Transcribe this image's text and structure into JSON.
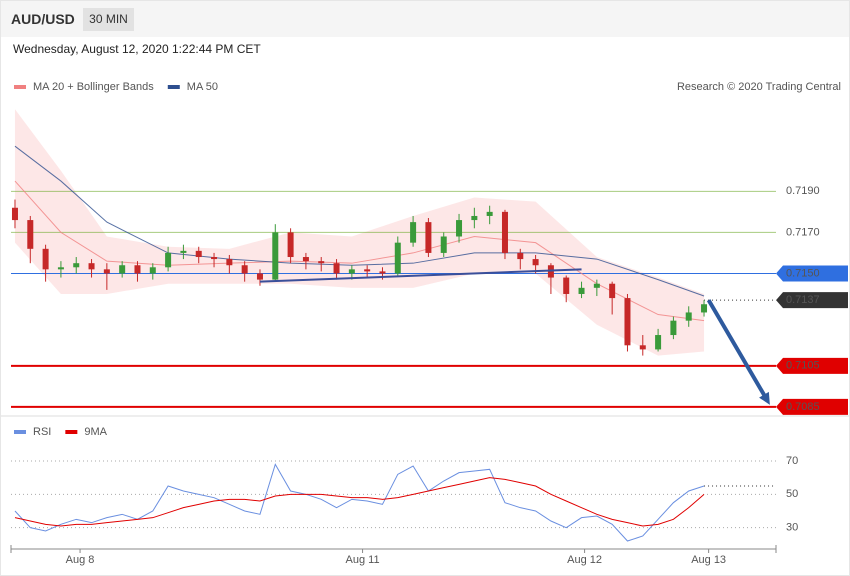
{
  "header": {
    "symbol": "AUD/USD",
    "timeframe": "30 MIN",
    "date": "Wednesday, August 12, 2020 1:22:44 PM CET"
  },
  "chart_data": [
    {
      "type": "candlestick",
      "annotation": "Research © 2020 Trading Central",
      "xlim": [
        -0.26,
        49.7
      ],
      "ylim": [
        0.7083,
        0.7234
      ],
      "up_color": "#3a9a3a",
      "down_color": "#c62828",
      "x": [
        0,
        1,
        2,
        3,
        4,
        5,
        6,
        7,
        8,
        9,
        10,
        11,
        12,
        13,
        14,
        15,
        16,
        17,
        18,
        19,
        20,
        21,
        22,
        23,
        24,
        25,
        26,
        27,
        28,
        29,
        30,
        31,
        32,
        33,
        34,
        35,
        36,
        37,
        38,
        39,
        40,
        41,
        42,
        43,
        44,
        45
      ],
      "open": [
        0.7182,
        0.7176,
        0.7162,
        0.7152,
        0.7153,
        0.7155,
        0.7152,
        0.715,
        0.7154,
        0.715,
        0.7153,
        0.716,
        0.7161,
        0.7158,
        0.7157,
        0.7154,
        0.715,
        0.7147,
        0.717,
        0.7158,
        0.7156,
        0.7155,
        0.715,
        0.7152,
        0.7151,
        0.715,
        0.7165,
        0.7175,
        0.716,
        0.7168,
        0.7176,
        0.7178,
        0.718,
        0.716,
        0.7157,
        0.7154,
        0.7148,
        0.714,
        0.7143,
        0.7145,
        0.7138,
        0.7115,
        0.7113,
        0.712,
        0.7127,
        0.7131
      ],
      "high": [
        0.7186,
        0.7178,
        0.7164,
        0.7156,
        0.7158,
        0.7157,
        0.7155,
        0.7156,
        0.7156,
        0.7155,
        0.7163,
        0.7164,
        0.7163,
        0.716,
        0.7159,
        0.7156,
        0.7152,
        0.7174,
        0.7172,
        0.716,
        0.7158,
        0.7157,
        0.7154,
        0.7154,
        0.7153,
        0.7168,
        0.7178,
        0.7177,
        0.717,
        0.7179,
        0.7182,
        0.7183,
        0.7181,
        0.7162,
        0.7159,
        0.7155,
        0.7149,
        0.7146,
        0.7147,
        0.7146,
        0.714,
        0.712,
        0.7123,
        0.7129,
        0.7134,
        0.7137
      ],
      "low": [
        0.7172,
        0.7155,
        0.7146,
        0.7148,
        0.715,
        0.7148,
        0.7142,
        0.7148,
        0.7146,
        0.7147,
        0.7151,
        0.7157,
        0.7155,
        0.7153,
        0.715,
        0.7146,
        0.7144,
        0.7146,
        0.7155,
        0.7152,
        0.7151,
        0.7147,
        0.7147,
        0.7148,
        0.7147,
        0.7149,
        0.7163,
        0.7158,
        0.7158,
        0.7165,
        0.7172,
        0.7174,
        0.7157,
        0.7152,
        0.715,
        0.714,
        0.7136,
        0.7138,
        0.7139,
        0.713,
        0.7112,
        0.711,
        0.7112,
        0.7118,
        0.7124,
        0.7129
      ],
      "close": [
        0.7176,
        0.7162,
        0.7152,
        0.7153,
        0.7155,
        0.7152,
        0.715,
        0.7154,
        0.715,
        0.7153,
        0.716,
        0.7161,
        0.7158,
        0.7157,
        0.7154,
        0.715,
        0.7147,
        0.717,
        0.7158,
        0.7156,
        0.7155,
        0.715,
        0.7152,
        0.7151,
        0.715,
        0.7165,
        0.7175,
        0.716,
        0.7168,
        0.7176,
        0.7178,
        0.718,
        0.716,
        0.7157,
        0.7154,
        0.7148,
        0.714,
        0.7143,
        0.7145,
        0.7138,
        0.7115,
        0.7113,
        0.712,
        0.7127,
        0.7131,
        0.7135
      ],
      "series": [
        {
          "name": "MA 20 + Bollinger Bands",
          "color": "#f08080",
          "band_color": "#fde3e3",
          "x": [
            0,
            3,
            6,
            10,
            14,
            18,
            22,
            26,
            30,
            34,
            38,
            42,
            45
          ],
          "values": [
            0.7195,
            0.717,
            0.7156,
            0.7154,
            0.7155,
            0.7156,
            0.7155,
            0.716,
            0.7168,
            0.7165,
            0.7145,
            0.713,
            0.7127
          ],
          "upper": [
            0.723,
            0.72,
            0.7168,
            0.7163,
            0.7162,
            0.717,
            0.7168,
            0.7178,
            0.7187,
            0.7185,
            0.7158,
            0.7148,
            0.714
          ],
          "lower": [
            0.7165,
            0.714,
            0.714,
            0.7145,
            0.7145,
            0.7145,
            0.7143,
            0.7143,
            0.715,
            0.715,
            0.7125,
            0.711,
            0.7112
          ]
        },
        {
          "name": "MA 50",
          "color": "#2e4f8f",
          "x": [
            0,
            3,
            6,
            10,
            14,
            18,
            22,
            26,
            30,
            34,
            38,
            42,
            45
          ],
          "values": [
            0.7212,
            0.7195,
            0.7175,
            0.716,
            0.7157,
            0.7155,
            0.7154,
            0.7155,
            0.716,
            0.716,
            0.7157,
            0.7147,
            0.7139
          ]
        }
      ],
      "levels": [
        {
          "value": 0.719,
          "label": "0.7190",
          "color": "#6aaa2a",
          "style": "plain"
        },
        {
          "value": 0.717,
          "label": "0.7170",
          "color": "#6aaa2a",
          "style": "plain"
        },
        {
          "value": 0.715,
          "label": "0.7150",
          "color": "#2f6fe0",
          "style": "boxed"
        },
        {
          "value": 0.7137,
          "label": "0.7137",
          "color": "#333333",
          "style": "dotted"
        },
        {
          "value": 0.7105,
          "label": "0.7105",
          "color": "#e00000",
          "style": "boxed"
        },
        {
          "value": 0.7085,
          "label": "0.7085",
          "color": "#e00000",
          "style": "boxed"
        }
      ],
      "trendline": {
        "x": [
          16,
          37
        ],
        "y": [
          0.7146,
          0.7152
        ],
        "color": "#3a4f9a"
      },
      "arrow": {
        "x": [
          45.3,
          49.3
        ],
        "y": [
          0.7137,
          0.7086
        ],
        "color": "#2e5a9e"
      }
    },
    {
      "type": "line",
      "xlim": [
        -0.26,
        49.7
      ],
      "ylim": [
        19,
        97
      ],
      "yticks": [
        30,
        50,
        70
      ],
      "xticks": [
        {
          "value": 4.25,
          "label": "Aug 8"
        },
        {
          "value": 22.7,
          "label": "Aug 11"
        },
        {
          "value": 37.2,
          "label": "Aug 12"
        },
        {
          "value": 45.3,
          "label": "Aug 13"
        }
      ],
      "x": [
        0,
        1,
        2,
        3,
        4,
        5,
        6,
        7,
        8,
        9,
        10,
        11,
        12,
        13,
        14,
        15,
        16,
        17,
        18,
        19,
        20,
        21,
        22,
        23,
        24,
        25,
        26,
        27,
        28,
        29,
        30,
        31,
        32,
        33,
        34,
        35,
        36,
        37,
        38,
        39,
        40,
        41,
        42,
        43,
        44,
        45
      ],
      "series": [
        {
          "name": "RSI",
          "color": "#6a8fe0",
          "values": [
            40,
            30,
            28,
            32,
            35,
            33,
            36,
            38,
            35,
            40,
            55,
            52,
            50,
            48,
            44,
            40,
            38,
            68,
            52,
            50,
            47,
            42,
            47,
            46,
            44,
            62,
            67,
            52,
            58,
            63,
            64,
            65,
            45,
            42,
            40,
            34,
            30,
            36,
            37,
            32,
            22,
            25,
            35,
            45,
            52,
            55
          ]
        },
        {
          "name": "9MA",
          "color": "#e00000",
          "values": [
            36,
            34,
            32,
            31,
            32,
            32,
            33,
            34,
            35,
            36,
            39,
            42,
            44,
            46,
            47,
            47,
            46,
            49,
            50,
            50,
            50,
            49,
            48,
            48,
            47,
            48,
            50,
            52,
            54,
            56,
            58,
            60,
            59,
            57,
            55,
            50,
            46,
            42,
            38,
            35,
            33,
            31,
            32,
            35,
            42,
            50
          ]
        }
      ]
    }
  ]
}
